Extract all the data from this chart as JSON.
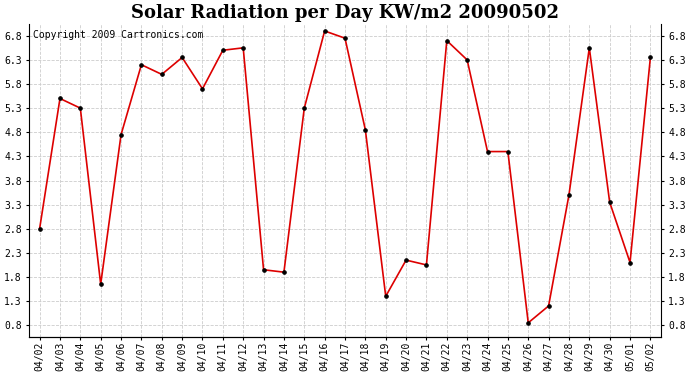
{
  "title": "Solar Radiation per Day KW/m2 20090502",
  "copyright": "Copyright 2009 Cartronics.com",
  "labels": [
    "04/02",
    "04/03",
    "04/04",
    "04/05",
    "04/06",
    "04/07",
    "04/08",
    "04/09",
    "04/10",
    "04/11",
    "04/12",
    "04/13",
    "04/14",
    "04/15",
    "04/16",
    "04/17",
    "04/18",
    "04/19",
    "04/20",
    "04/21",
    "04/22",
    "04/23",
    "04/24",
    "04/25",
    "04/26",
    "04/27",
    "04/28",
    "04/29",
    "04/30",
    "05/01",
    "05/02"
  ],
  "plot_values": [
    2.8,
    5.5,
    5.3,
    1.65,
    4.75,
    6.2,
    6.0,
    6.35,
    5.7,
    6.5,
    6.55,
    1.95,
    1.9,
    5.3,
    6.9,
    6.75,
    4.85,
    1.4,
    2.15,
    2.05,
    6.7,
    6.3,
    4.4,
    4.4,
    0.85,
    1.2,
    3.5,
    6.55,
    3.35,
    2.1,
    6.35
  ],
  "ylim": [
    0.55,
    7.05
  ],
  "yticks": [
    0.8,
    1.3,
    1.8,
    2.3,
    2.8,
    3.3,
    3.8,
    4.3,
    4.8,
    5.3,
    5.8,
    6.3,
    6.8
  ],
  "line_color": "#dd0000",
  "marker_facecolor": "#000000",
  "marker_edgecolor": "#000000",
  "bg_color": "#ffffff",
  "grid_color": "#cccccc",
  "title_fontsize": 13,
  "tick_fontsize": 7,
  "copyright_fontsize": 7
}
